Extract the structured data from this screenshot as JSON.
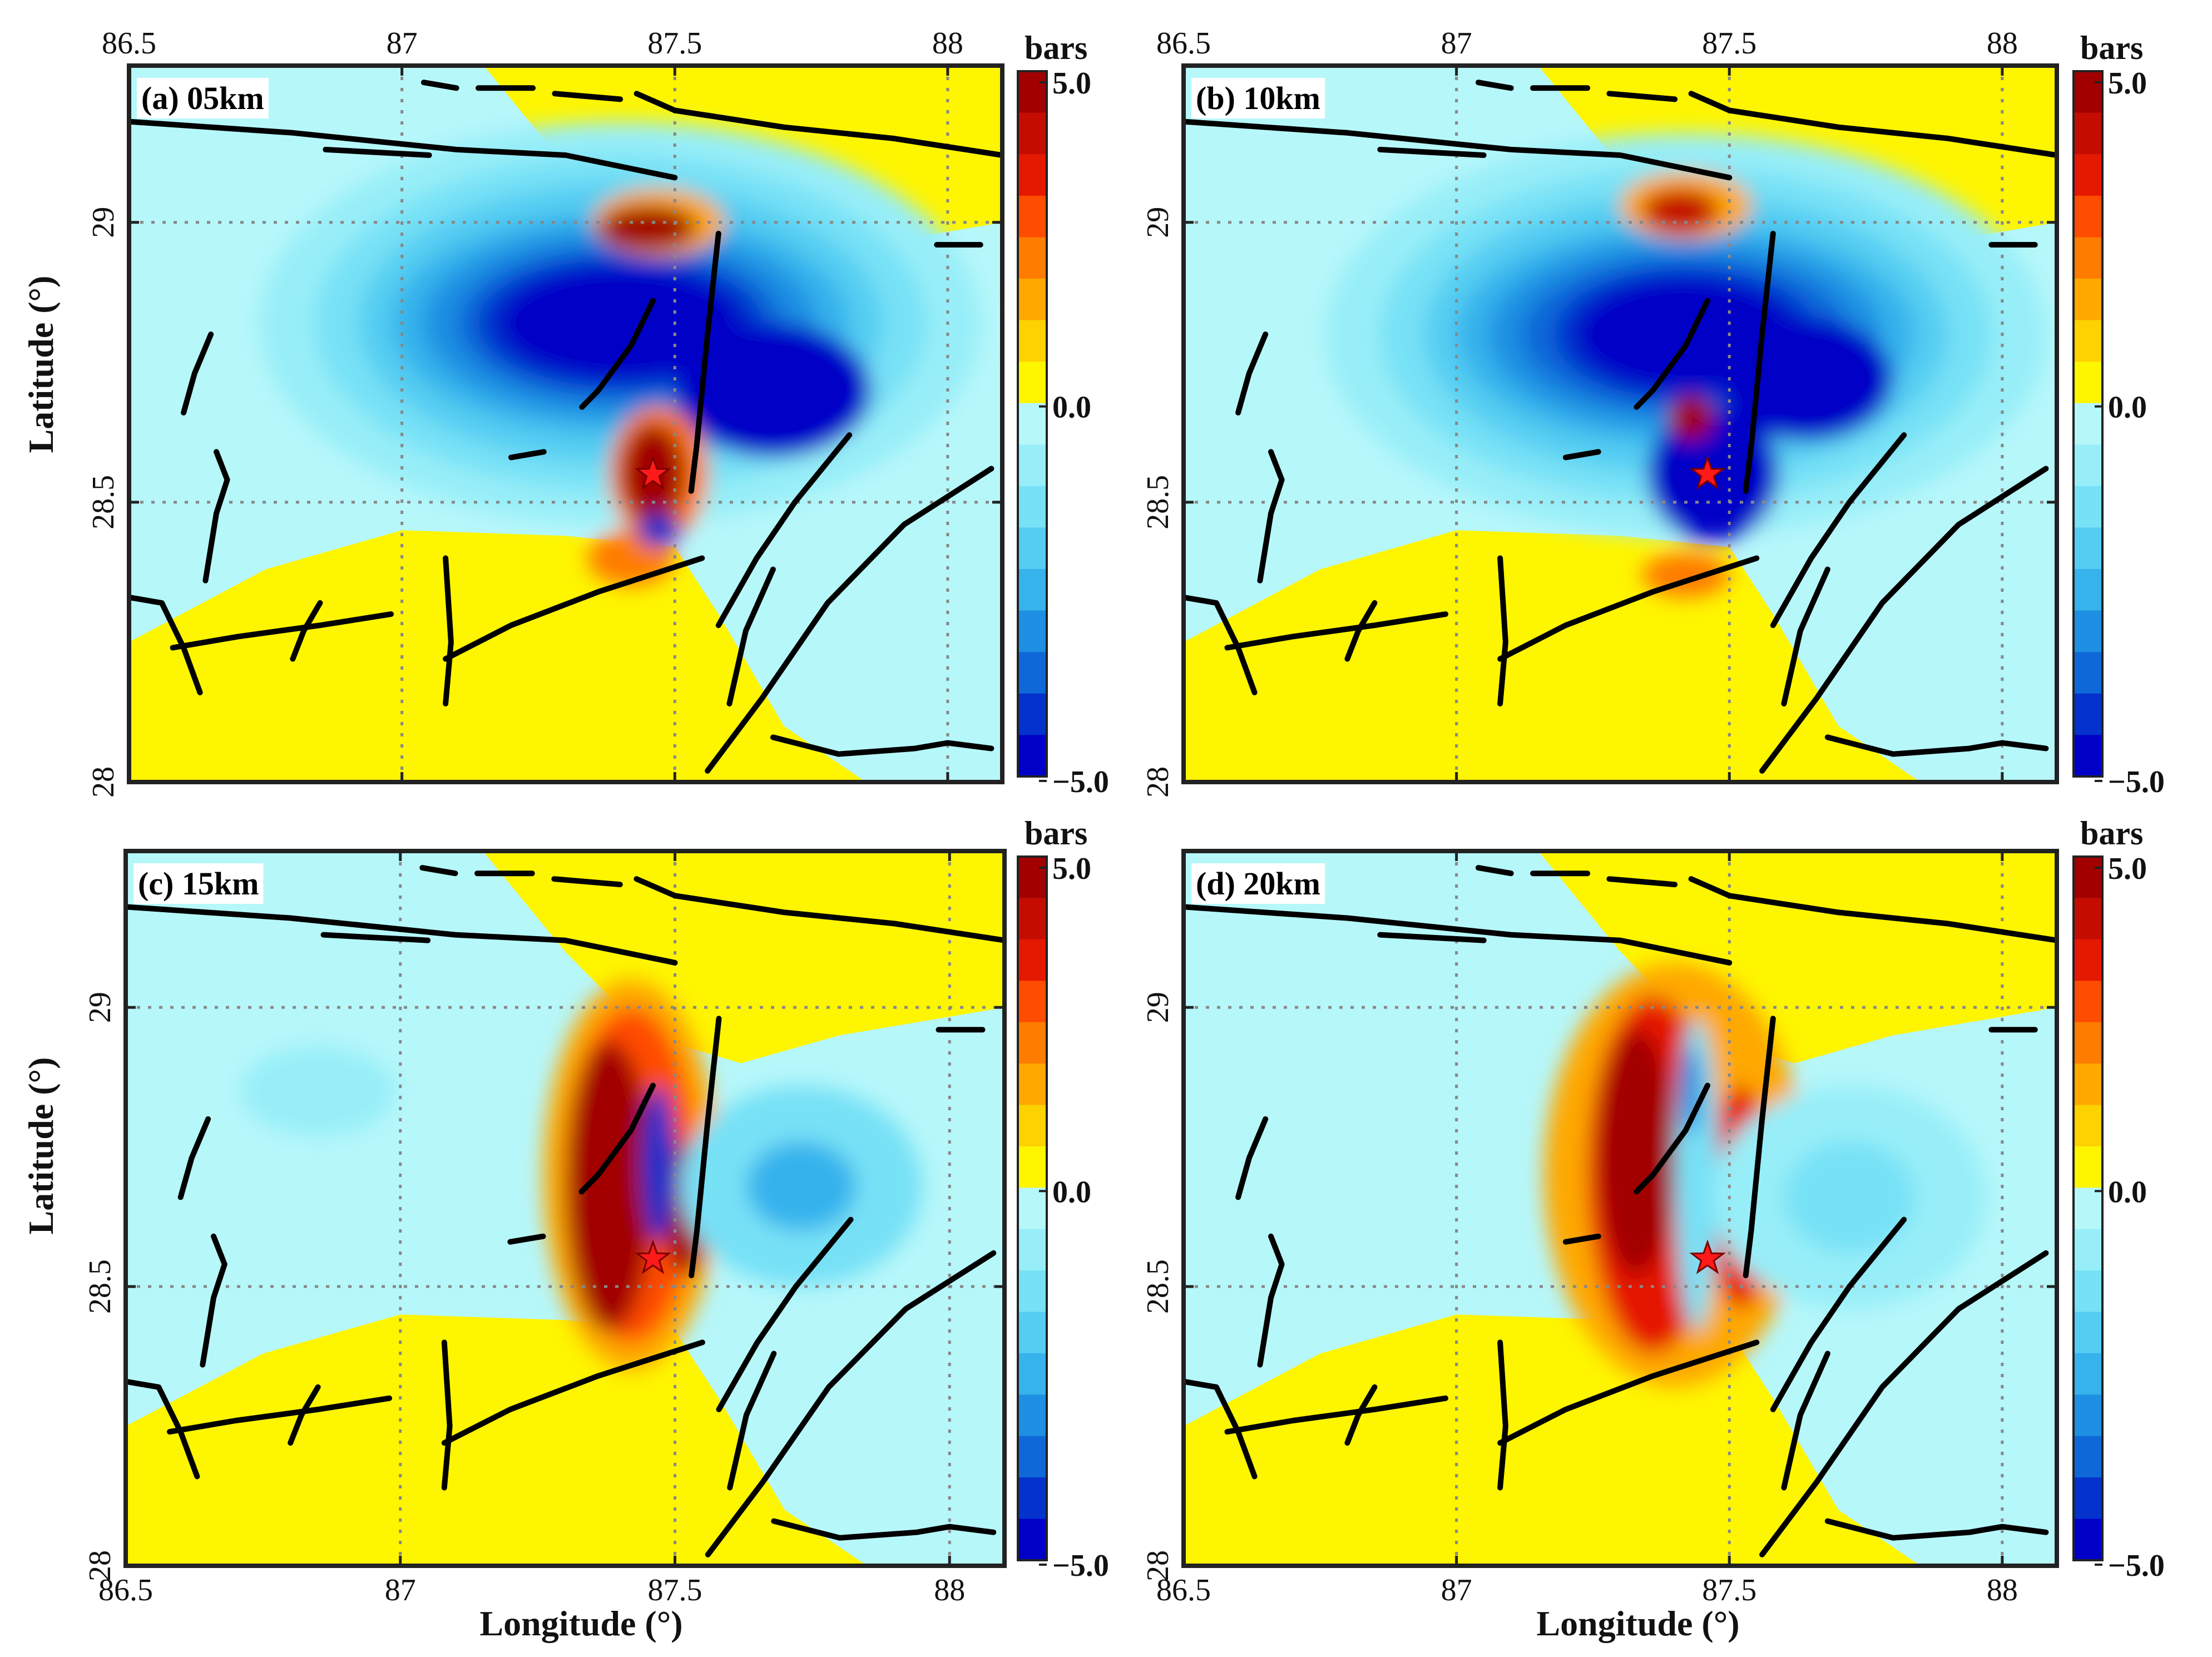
{
  "figure": {
    "xlabel": "Longitude (°)",
    "ylabel": "Latitude (°)"
  },
  "colors": {
    "positive_scale": [
      "#fef500",
      "#fed100",
      "#fea800",
      "#fe7c00",
      "#fe4c00",
      "#e51800",
      "#c40d00",
      "#a20000"
    ],
    "negative_scale": [
      "#b6f7fa",
      "#97eef8",
      "#77e1f6",
      "#55cdf2",
      "#36b2ec",
      "#1e8fe2",
      "#0f68d8",
      "#0332cc",
      "#0000c7"
    ],
    "fault": "#000000",
    "epicenter": "#ff1a1a",
    "frame": "#222222"
  },
  "chart_data": [
    {
      "type": "heatmap",
      "title": "(a) 05km",
      "depth_km": 5,
      "xlim": [
        86.5,
        88.1
      ],
      "ylim": [
        28.0,
        29.28
      ],
      "x_ticks": [
        "86.5",
        "87",
        "87.5",
        "88"
      ],
      "y_ticks": [
        "28",
        "28.5",
        "29"
      ],
      "colorbar": {
        "unit": "bars",
        "ticks": [
          "5.0",
          "0.0",
          "−5.0"
        ],
        "range": [
          -5,
          5
        ]
      },
      "epicenter": {
        "lon": 87.46,
        "lat": 28.55
      },
      "pattern": "deep negative lobe north of the epicenter, positive patches at the north and south tips"
    },
    {
      "type": "heatmap",
      "title": "(b) 10km",
      "depth_km": 10,
      "xlim": [
        86.5,
        88.1
      ],
      "ylim": [
        28.0,
        29.28
      ],
      "x_ticks": [
        "86.5",
        "87",
        "87.5",
        "88"
      ],
      "y_ticks": [
        "28",
        "28.5",
        "29"
      ],
      "colorbar": {
        "unit": "bars",
        "ticks": [
          "5.0",
          "0.0",
          "−5.0"
        ],
        "range": [
          -5,
          5
        ]
      },
      "epicenter": {
        "lon": 87.46,
        "lat": 28.55
      },
      "pattern": "broad negative lobe, smaller positive tips"
    },
    {
      "type": "heatmap",
      "title": "(c) 15km",
      "depth_km": 15,
      "xlim": [
        86.5,
        88.1
      ],
      "ylim": [
        28.0,
        29.28
      ],
      "x_ticks": [
        "86.5",
        "87",
        "87.5",
        "88"
      ],
      "y_ticks": [
        "28",
        "28.5",
        "29"
      ],
      "colorbar": {
        "unit": "bars",
        "ticks": [
          "5.0",
          "0.0",
          "−5.0"
        ],
        "range": [
          -5,
          5
        ]
      },
      "epicenter": {
        "lon": 87.46,
        "lat": 28.55
      },
      "pattern": "elongated north-south positive band with thin negative core"
    },
    {
      "type": "heatmap",
      "title": "(d) 20km",
      "depth_km": 20,
      "xlim": [
        86.5,
        88.1
      ],
      "ylim": [
        28.0,
        29.28
      ],
      "x_ticks": [
        "86.5",
        "87",
        "87.5",
        "88"
      ],
      "y_ticks": [
        "28",
        "28.5",
        "29"
      ],
      "colorbar": {
        "unit": "bars",
        "ticks": [
          "5.0",
          "0.0",
          "−5.0"
        ],
        "range": [
          -5,
          5
        ]
      },
      "epicenter": {
        "lon": 87.46,
        "lat": 28.55
      },
      "pattern": "two parallel positive bands separated by a narrow negative strip"
    }
  ],
  "faults": [
    [
      [
        86.5,
        29.18
      ],
      [
        86.8,
        29.16
      ],
      [
        87.1,
        29.13
      ],
      [
        87.3,
        29.12
      ],
      [
        87.5,
        29.08
      ]
    ],
    [
      [
        86.86,
        29.13
      ],
      [
        87.05,
        29.12
      ]
    ],
    [
      [
        87.04,
        29.25
      ],
      [
        87.1,
        29.24
      ]
    ],
    [
      [
        87.14,
        29.24
      ],
      [
        87.24,
        29.24
      ]
    ],
    [
      [
        87.28,
        29.23
      ],
      [
        87.4,
        29.22
      ]
    ],
    [
      [
        87.43,
        29.23
      ],
      [
        87.5,
        29.2
      ],
      [
        87.7,
        29.17
      ],
      [
        87.9,
        29.15
      ],
      [
        88.1,
        29.12
      ]
    ],
    [
      [
        87.98,
        28.96
      ],
      [
        88.06,
        28.96
      ]
    ],
    [
      [
        87.58,
        28.98
      ],
      [
        87.56,
        28.8
      ],
      [
        87.54,
        28.6
      ],
      [
        87.53,
        28.52
      ]
    ],
    [
      [
        87.46,
        28.86
      ],
      [
        87.42,
        28.78
      ],
      [
        87.36,
        28.7
      ],
      [
        87.33,
        28.67
      ]
    ],
    [
      [
        87.2,
        28.58
      ],
      [
        87.26,
        28.59
      ]
    ],
    [
      [
        86.65,
        28.8
      ],
      [
        86.62,
        28.73
      ],
      [
        86.6,
        28.66
      ]
    ],
    [
      [
        86.66,
        28.59
      ],
      [
        86.68,
        28.54
      ],
      [
        86.66,
        28.48
      ],
      [
        86.64,
        28.36
      ]
    ],
    [
      [
        86.5,
        28.33
      ],
      [
        86.56,
        28.32
      ],
      [
        86.6,
        28.24
      ],
      [
        86.63,
        28.16
      ]
    ],
    [
      [
        86.58,
        28.24
      ],
      [
        86.7,
        28.26
      ],
      [
        86.85,
        28.28
      ],
      [
        86.98,
        28.3
      ]
    ],
    [
      [
        86.8,
        28.22
      ],
      [
        86.82,
        28.27
      ],
      [
        86.85,
        28.32
      ]
    ],
    [
      [
        87.08,
        28.4
      ],
      [
        87.09,
        28.25
      ],
      [
        87.08,
        28.14
      ]
    ],
    [
      [
        87.08,
        28.22
      ],
      [
        87.2,
        28.28
      ],
      [
        87.36,
        28.34
      ],
      [
        87.55,
        28.4
      ]
    ],
    [
      [
        87.58,
        28.28
      ],
      [
        87.65,
        28.4
      ],
      [
        87.72,
        28.5
      ],
      [
        87.82,
        28.62
      ]
    ],
    [
      [
        87.6,
        28.14
      ],
      [
        87.63,
        28.27
      ],
      [
        87.68,
        28.38
      ]
    ],
    [
      [
        87.56,
        28.02
      ],
      [
        87.66,
        28.15
      ],
      [
        87.78,
        28.32
      ],
      [
        87.92,
        28.46
      ],
      [
        88.08,
        28.56
      ]
    ],
    [
      [
        87.68,
        28.08
      ],
      [
        87.8,
        28.05
      ],
      [
        87.94,
        28.06
      ],
      [
        88.0,
        28.07
      ],
      [
        88.08,
        28.06
      ]
    ]
  ]
}
